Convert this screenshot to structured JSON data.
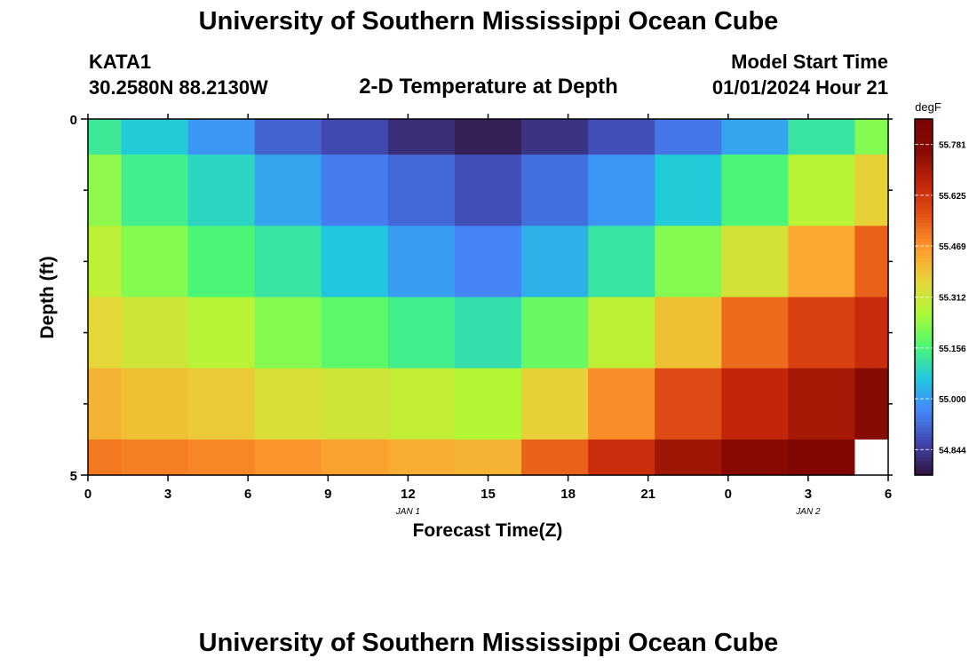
{
  "header": {
    "title": "University of Southern Mississippi Ocean Cube",
    "station": "KATA1",
    "location": "30.2580N  88.2130W",
    "plot_title": "2-D Temperature at Depth",
    "model_label": "Model Start Time",
    "model_start": "01/01/2024 Hour 21"
  },
  "footer": {
    "title": "University of Southern Mississippi Ocean Cube"
  },
  "chart_data": {
    "type": "heatmap",
    "title": "2-D Temperature at Depth",
    "xlabel": "Forecast Time(Z)",
    "ylabel": "Depth (ft)",
    "x_tick_labels": [
      "0",
      "3",
      "6",
      "9",
      "12",
      "15",
      "18",
      "21",
      "0",
      "3",
      "6"
    ],
    "x_date_labels": [
      {
        "label": "JAN 1",
        "at_tick": 4
      },
      {
        "label": "JAN 2",
        "at_tick": 9
      }
    ],
    "y_tick_labels": [
      "0",
      "5"
    ],
    "ylim": [
      0,
      5
    ],
    "colorbar": {
      "unit": "degF",
      "tick_values": [
        54.844,
        55.0,
        55.156,
        55.312,
        55.469,
        55.625,
        55.781
      ],
      "tick_labels": [
        "54.844",
        "55.000",
        "55.156",
        "55.312",
        "55.469",
        "55.625",
        "55.781"
      ],
      "range": [
        54.766,
        55.859
      ],
      "colormap": [
        "#30123b",
        "#4146ac",
        "#4686fb",
        "#1fc8de",
        "#4df873",
        "#aef936",
        "#e6d539",
        "#fe9b2d",
        "#e55315",
        "#c2260a",
        "#880b02",
        "#7a0403"
      ]
    },
    "x_bounds": [
      0,
      1.25,
      3.75,
      6.25,
      8.75,
      11.25,
      13.75,
      16.25,
      18.75,
      21.25,
      23.75,
      26.25,
      28.75,
      30
    ],
    "y_bounds": [
      0,
      0.5,
      1.5,
      2.5,
      3.5,
      4.5,
      5
    ],
    "values": [
      [
        55.13,
        55.07,
        54.99,
        54.91,
        54.87,
        54.82,
        54.79,
        54.83,
        54.88,
        54.94,
        55.01,
        55.12,
        55.22
      ],
      [
        55.23,
        55.14,
        55.09,
        55.01,
        54.95,
        54.92,
        54.88,
        54.93,
        54.99,
        55.07,
        55.16,
        55.28,
        55.37
      ],
      [
        55.29,
        55.22,
        55.16,
        55.12,
        55.06,
        55.0,
        54.96,
        55.03,
        55.12,
        55.22,
        55.33,
        55.44,
        55.54
      ],
      [
        55.36,
        55.32,
        55.28,
        55.22,
        55.18,
        55.14,
        55.11,
        55.19,
        55.29,
        55.4,
        55.53,
        55.6,
        55.65
      ],
      [
        55.42,
        55.4,
        55.38,
        55.34,
        55.32,
        55.3,
        55.27,
        55.37,
        55.48,
        55.58,
        55.66,
        55.71,
        55.78
      ],
      [
        55.51,
        55.5,
        55.49,
        55.47,
        55.45,
        55.43,
        55.42,
        55.54,
        55.64,
        55.72,
        55.77,
        55.81,
        null
      ]
    ]
  }
}
